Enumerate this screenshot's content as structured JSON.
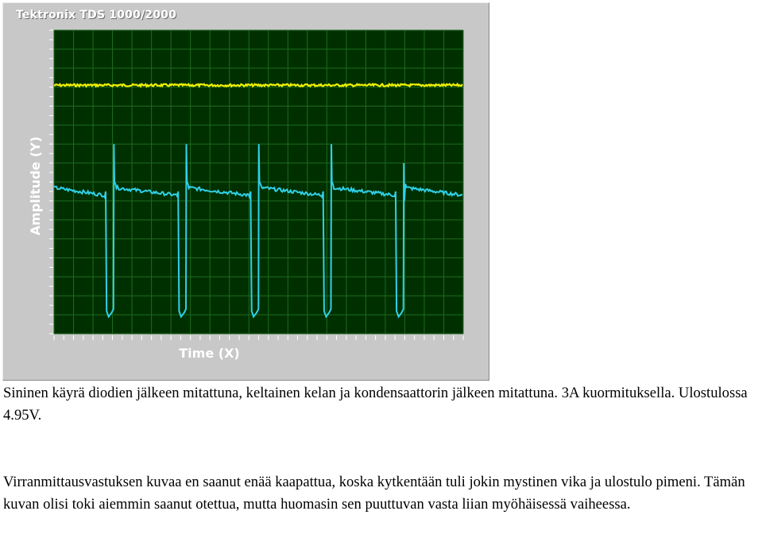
{
  "scope": {
    "title": "Tektronix TDS 1000/2000",
    "y_axis_label": "Amplitude (Y)",
    "x_axis_label": "Time (X)",
    "colors": {
      "background": "#003000",
      "grid": "#1f6a1f",
      "yellow_trace": "#f0f000",
      "cyan_trace": "#30d0e8",
      "frame": "#c8c8c8"
    }
  },
  "chart_data": {
    "type": "line",
    "title": "",
    "xlabel": "Time (X)",
    "ylabel": "Amplitude (Y)",
    "grid": true,
    "x_divisions": 21,
    "y_divisions": 16,
    "series": [
      {
        "color": "#f0f000",
        "x": [
          0,
          21
        ],
        "y": [
          13.1,
          13.1
        ]
      },
      {
        "color": "#30d0e8",
        "period_x": 3.72,
        "first_spike_x": 3.1,
        "levels": {
          "plateau_start": 7.7,
          "plateau_end": 7.3,
          "spike_top": 10.0,
          "drop_bottom": 1.0,
          "last_spike_top": 9.0
        }
      }
    ]
  },
  "captions": {
    "paragraph_1": "Sininen käyrä diodien jälkeen mitattuna, keltainen kelan ja kondensaattorin jälkeen mitattuna. 3A kuormituksella. Ulostulossa 4.95V.",
    "paragraph_2": "Virranmittausvastuksen kuvaa en saanut enää kaapattua, koska kytkentään tuli jokin mystinen vika ja ulostulo pimeni. Tämän kuvan olisi toki aiemmin saanut otettua, mutta huomasin sen puuttuvan vasta liian myöhäisessä vaiheessa."
  }
}
